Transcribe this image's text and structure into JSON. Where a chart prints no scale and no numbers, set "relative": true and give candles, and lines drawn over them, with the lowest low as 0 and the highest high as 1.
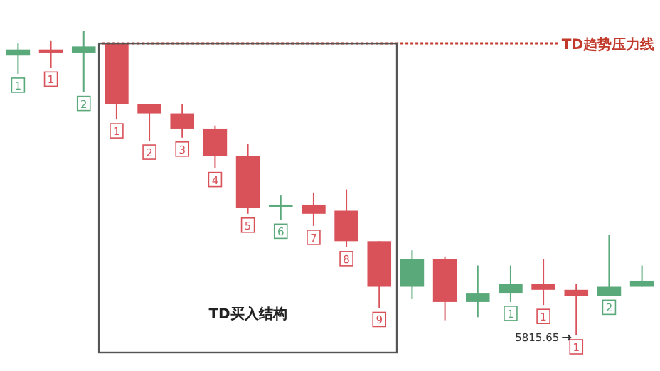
{
  "chart_data": {
    "type": "candlestick",
    "relative": true,
    "categories": [
      null,
      null,
      null,
      null,
      null,
      null,
      null,
      null,
      null,
      null,
      null,
      null,
      null,
      null,
      null,
      null,
      null,
      null,
      null,
      null
    ],
    "ohlc": [
      [
        0.92,
        0.96,
        0.86,
        0.94
      ],
      [
        0.94,
        0.97,
        0.88,
        0.93
      ],
      [
        0.93,
        1,
        0.8,
        0.95
      ],
      [
        0.96,
        0.96,
        0.71,
        0.76
      ],
      [
        0.76,
        0.76,
        0.64,
        0.73
      ],
      [
        0.73,
        0.76,
        0.65,
        0.68
      ],
      [
        0.68,
        0.69,
        0.55,
        0.59
      ],
      [
        0.59,
        0.63,
        0.4,
        0.42
      ],
      [
        0.43,
        0.46,
        0.38,
        0.43
      ],
      [
        0.43,
        0.47,
        0.36,
        0.4
      ],
      [
        0.41,
        0.48,
        0.29,
        0.31
      ],
      [
        0.31,
        0.31,
        0.09,
        0.16
      ],
      [
        0.16,
        0.28,
        0.12,
        0.25
      ],
      [
        0.25,
        0.26,
        0.05,
        0.11
      ],
      [
        0.11,
        0.23,
        0.06,
        0.14
      ],
      [
        0.14,
        0.23,
        0.11,
        0.17
      ],
      [
        0.17,
        0.25,
        0.1,
        0.15
      ],
      [
        0.15,
        0.17,
        0,
        0.13
      ],
      [
        0.13,
        0.33,
        0.13,
        0.16
      ],
      [
        0.16,
        0.23,
        0.16,
        0.18
      ]
    ],
    "colors": [
      "#5aa97a",
      "#d9525a",
      "#5aa97a",
      "#d9525a",
      "#d9525a",
      "#d9525a",
      "#d9525a",
      "#d9525a",
      "#5aa97a",
      "#d9525a",
      "#d9525a",
      "#d9525a",
      "#5aa97a",
      "#d9525a",
      "#5aa97a",
      "#5aa97a",
      "#d9525a",
      "#d9525a",
      "#5aa97a",
      "#5aa97a"
    ],
    "value_labels": [
      "1",
      "1",
      "2",
      "1",
      "2",
      "3",
      "4",
      "5",
      "6",
      "7",
      "8",
      "9",
      null,
      null,
      null,
      "1",
      "1",
      "1",
      "2",
      null
    ],
    "ref_lines": [
      {
        "axis": "y",
        "value": 0.96,
        "label": "TD趋势压力线",
        "color": "#c0392b",
        "line_style": "dotted"
      }
    ],
    "annotations": [
      "TD买入结构",
      "5815.65"
    ]
  }
}
